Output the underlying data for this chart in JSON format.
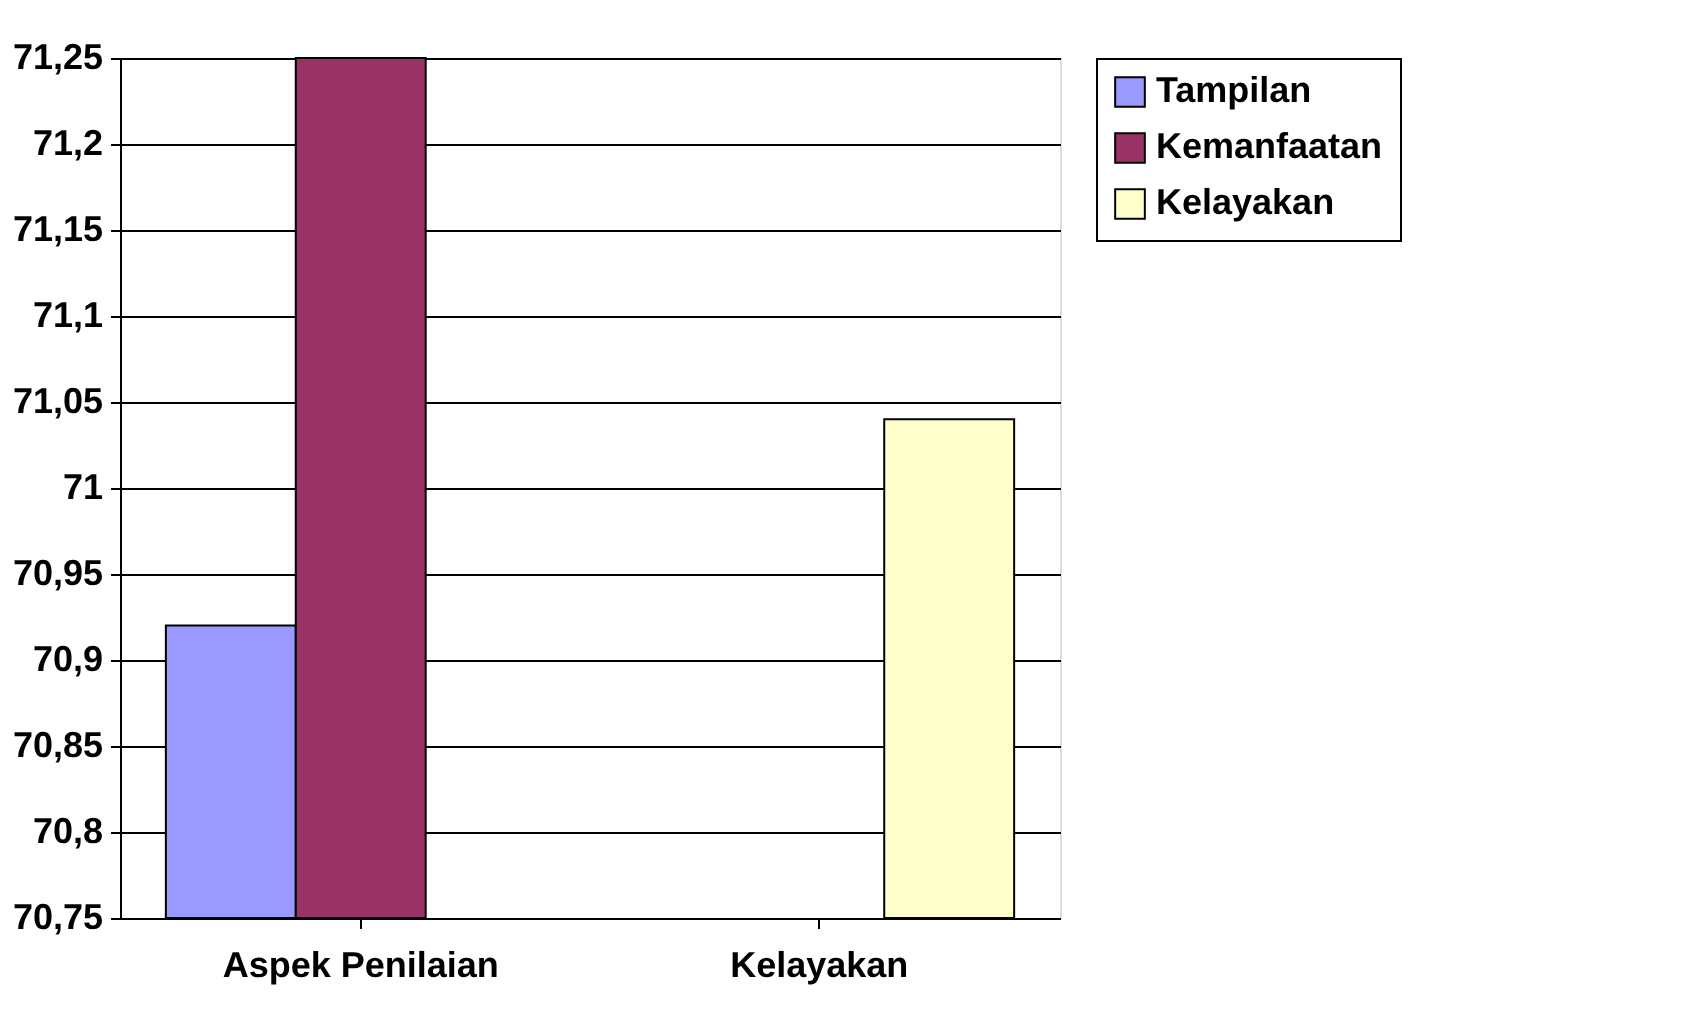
{
  "chart_data": {
    "type": "bar",
    "categories": [
      "Aspek Penilaian",
      "Kelayakan"
    ],
    "series": [
      {
        "name": "Tampilan",
        "color": "#9999ff",
        "values": [
          70.92,
          null
        ]
      },
      {
        "name": "Kemanfaatan",
        "color": "#993366",
        "values": [
          71.25,
          null
        ]
      },
      {
        "name": "Kelayakan",
        "color": "#ffffcc",
        "values": [
          null,
          71.04
        ]
      }
    ],
    "ylim": [
      70.75,
      71.25
    ],
    "yticks": [
      {
        "value": 70.75,
        "label": "70,75"
      },
      {
        "value": 70.8,
        "label": "70,8"
      },
      {
        "value": 70.85,
        "label": "70,85"
      },
      {
        "value": 70.9,
        "label": "70,9"
      },
      {
        "value": 70.95,
        "label": "70,95"
      },
      {
        "value": 71,
        "label": "71"
      },
      {
        "value": 71.05,
        "label": "71,05"
      },
      {
        "value": 71.1,
        "label": "71,1"
      },
      {
        "value": 71.15,
        "label": "71,15"
      },
      {
        "value": 71.2,
        "label": "71,2"
      },
      {
        "value": 71.25,
        "label": "71,25"
      }
    ],
    "grid": "y",
    "legend": "right"
  }
}
